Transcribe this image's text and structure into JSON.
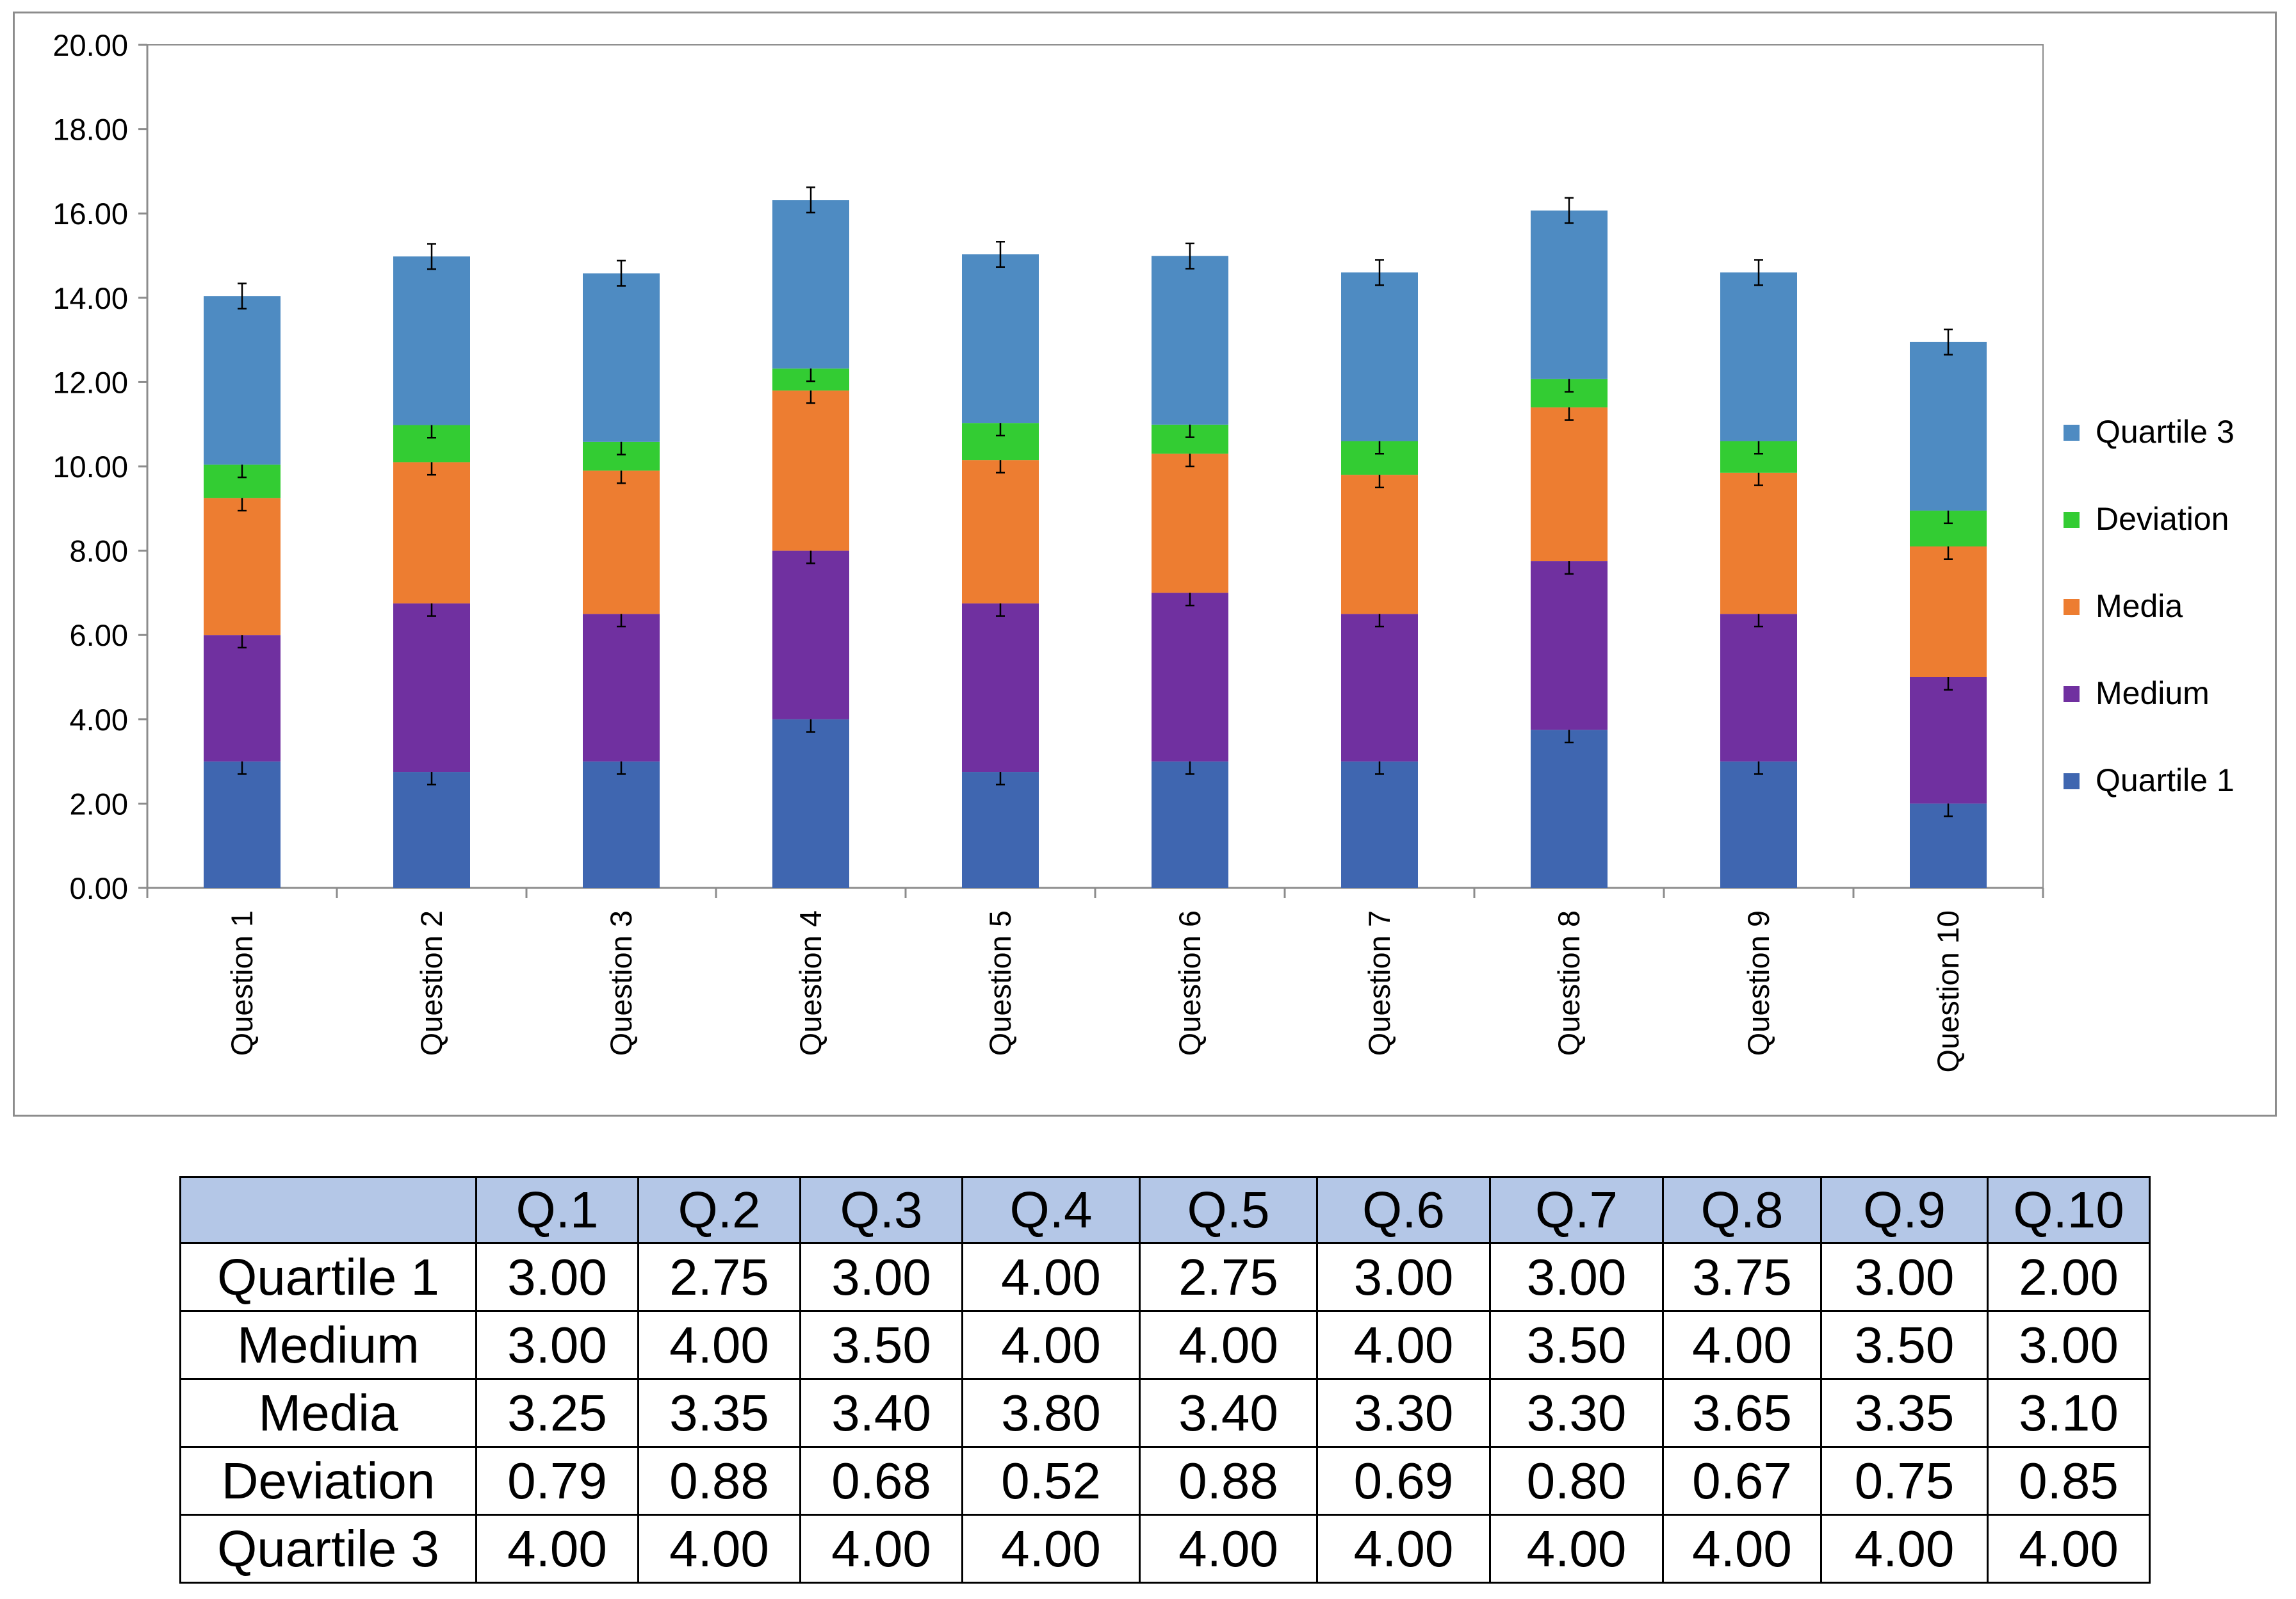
{
  "chart_data": {
    "type": "bar",
    "stacked": true,
    "categories": [
      "Question 1",
      "Question 2",
      "Question 3",
      "Question 4",
      "Question 5",
      "Question 6",
      "Question 7",
      "Question 8",
      "Question 9",
      "Question 10"
    ],
    "series": [
      {
        "name": "Quartile 1",
        "color": "#3f66b0",
        "values": [
          3.0,
          2.75,
          3.0,
          4.0,
          2.75,
          3.0,
          3.0,
          3.75,
          3.0,
          2.0
        ]
      },
      {
        "name": "Medium",
        "color": "#7030a0",
        "values": [
          3.0,
          4.0,
          3.5,
          4.0,
          4.0,
          4.0,
          3.5,
          4.0,
          3.5,
          3.0
        ]
      },
      {
        "name": "Media",
        "color": "#ed7d31",
        "values": [
          3.25,
          3.35,
          3.4,
          3.8,
          3.4,
          3.3,
          3.3,
          3.65,
          3.35,
          3.1
        ]
      },
      {
        "name": "Deviation",
        "color": "#33cc33",
        "values": [
          0.79,
          0.88,
          0.68,
          0.52,
          0.88,
          0.69,
          0.8,
          0.67,
          0.75,
          0.85
        ]
      },
      {
        "name": "Quartile 3",
        "color": "#4e8bc2",
        "values": [
          4.0,
          4.0,
          4.0,
          4.0,
          4.0,
          4.0,
          4.0,
          4.0,
          4.0,
          4.0
        ]
      }
    ],
    "ylim": [
      0,
      20
    ],
    "yticks": [
      "0.00",
      "2.00",
      "4.00",
      "6.00",
      "8.00",
      "10.00",
      "12.00",
      "14.00",
      "16.00",
      "18.00",
      "20.00"
    ],
    "error_bar": 0.3,
    "legend_position": "right",
    "title": "",
    "xlabel": "",
    "ylabel": ""
  },
  "table": {
    "columns": [
      "",
      "Q.1",
      "Q.2",
      "Q.3",
      "Q.4",
      "Q.5",
      "Q.6",
      "Q.7",
      "Q.8",
      "Q.9",
      "Q.10"
    ],
    "rows": [
      {
        "label": "Quartile 1",
        "values": [
          "3.00",
          "2.75",
          "3.00",
          "4.00",
          "2.75",
          "3.00",
          "3.00",
          "3.75",
          "3.00",
          "2.00"
        ]
      },
      {
        "label": "Medium",
        "values": [
          "3.00",
          "4.00",
          "3.50",
          "4.00",
          "4.00",
          "4.00",
          "3.50",
          "4.00",
          "3.50",
          "3.00"
        ]
      },
      {
        "label": "Media",
        "values": [
          "3.25",
          "3.35",
          "3.40",
          "3.80",
          "3.40",
          "3.30",
          "3.30",
          "3.65",
          "3.35",
          "3.10"
        ]
      },
      {
        "label": "Deviation",
        "values": [
          "0.79",
          "0.88",
          "0.68",
          "0.52",
          "0.88",
          "0.69",
          "0.80",
          "0.67",
          "0.75",
          "0.85"
        ]
      },
      {
        "label": "Quartile 3",
        "values": [
          "4.00",
          "4.00",
          "4.00",
          "4.00",
          "4.00",
          "4.00",
          "4.00",
          "4.00",
          "4.00",
          "4.00"
        ]
      }
    ]
  }
}
